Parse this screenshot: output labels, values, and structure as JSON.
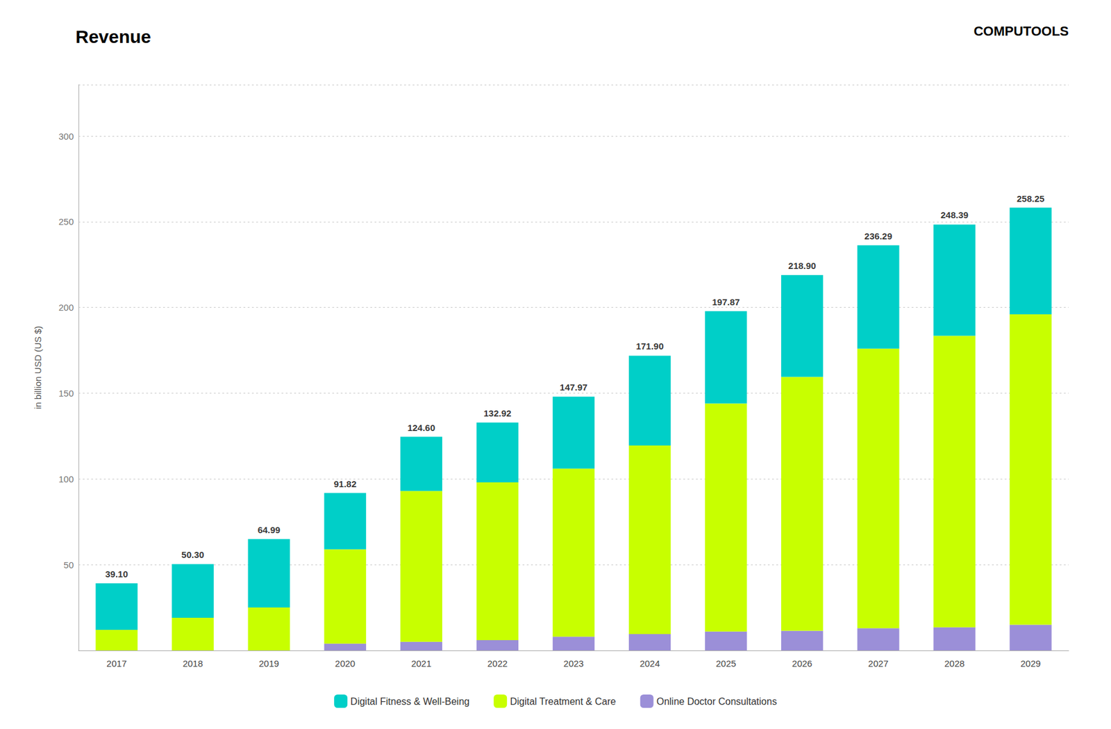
{
  "chart_data": {
    "type": "bar",
    "title": "Revenue",
    "ylabel": "in billion USD (US $)",
    "categories": [
      "2017",
      "2018",
      "2019",
      "2020",
      "2021",
      "2022",
      "2023",
      "2024",
      "2025",
      "2026",
      "2027",
      "2028",
      "2029"
    ],
    "series": [
      {
        "name": "Online Doctor Consultations",
        "color": "#9B8FD8",
        "values": [
          0.0,
          0.0,
          0.0,
          4.0,
          5.0,
          6.0,
          8.0,
          9.5,
          11.0,
          11.5,
          13.0,
          13.5,
          15.0
        ]
      },
      {
        "name": "Digital Treatment & Care",
        "color": "#C8FF00",
        "values": [
          12.0,
          19.0,
          25.0,
          55.0,
          88.0,
          92.0,
          98.0,
          110.0,
          133.0,
          148.0,
          163.0,
          170.0,
          181.0
        ]
      },
      {
        "name": "Digital Fitness & Well-Being",
        "color": "#00CFC8",
        "values": [
          27.1,
          31.3,
          39.99,
          32.82,
          31.6,
          34.92,
          41.97,
          52.4,
          53.87,
          59.4,
          60.29,
          64.89,
          62.25
        ]
      }
    ],
    "totals": [
      39.1,
      50.3,
      64.99,
      91.82,
      124.6,
      132.92,
      147.97,
      171.9,
      197.87,
      218.9,
      236.29,
      248.39,
      258.25
    ],
    "total_labels": [
      "39.10",
      "50.30",
      "64.99",
      "91.82",
      "124.60",
      "132.92",
      "147.97",
      "171.90",
      "197.87",
      "218.90",
      "236.29",
      "248.39",
      "258.25"
    ],
    "annotations": [
      {
        "text": "COMPUTOOLS"
      }
    ],
    "stacked": true,
    "ylim": [
      0,
      330
    ],
    "yticks": [
      50,
      100,
      150,
      200,
      250,
      300
    ],
    "grid": true,
    "legend": "bottom"
  }
}
